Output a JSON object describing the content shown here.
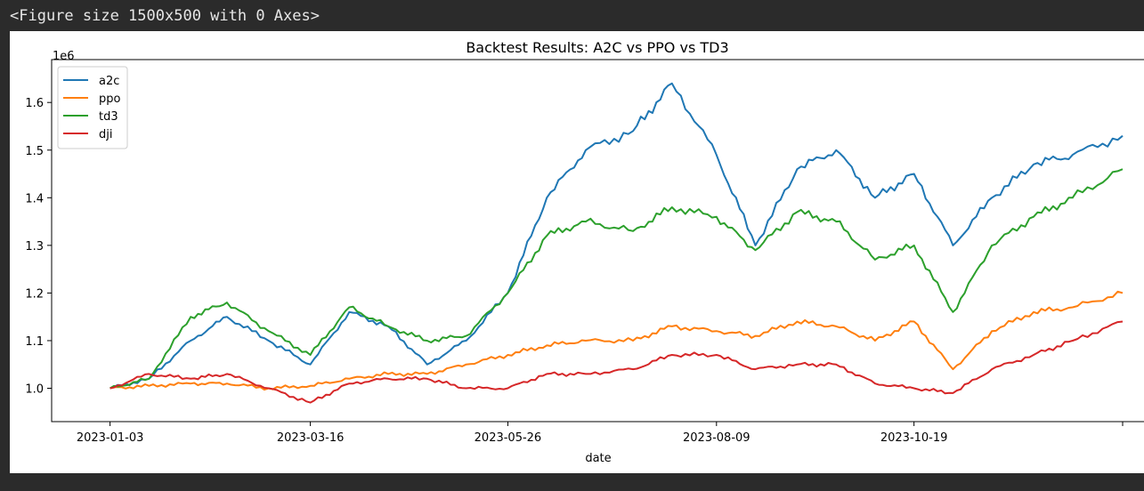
{
  "output_header": "<Figure size 1500x500 with 0 Axes>",
  "chart_data": {
    "type": "line",
    "title": "Backtest Results: A2C vs PPO vs TD3",
    "xlabel": "date",
    "ylabel": "",
    "y_offset_label": "1e6",
    "x_tick_labels": [
      "2023-01-03",
      "2023-03-16",
      "2023-05-26",
      "2023-08-09",
      "2023-10-19"
    ],
    "x_tick_dates": [
      "2023-01-03",
      "2023-03-16",
      "2023-05-26",
      "2023-08-09",
      "2023-10-19",
      "2024-01-02"
    ],
    "y_tick_values": [
      1.0,
      1.1,
      1.2,
      1.3,
      1.4,
      1.5,
      1.6
    ],
    "y_tick_labels": [
      "1.0",
      "1.1",
      "1.2",
      "1.3",
      "1.4",
      "1.5",
      "1.6"
    ],
    "ylim": [
      0.93,
      1.69
    ],
    "xlim": [
      "2022-12-13",
      "2024-01-10"
    ],
    "grid": false,
    "legend_position": "top-left",
    "dates": [
      "2023-01-03",
      "2023-01-17",
      "2023-02-01",
      "2023-02-14",
      "2023-03-01",
      "2023-03-16",
      "2023-03-30",
      "2023-04-13",
      "2023-04-27",
      "2023-05-11",
      "2023-05-26",
      "2023-06-09",
      "2023-06-23",
      "2023-07-10",
      "2023-07-24",
      "2023-08-09",
      "2023-08-23",
      "2023-09-07",
      "2023-09-21",
      "2023-10-05",
      "2023-10-19",
      "2023-11-02",
      "2023-11-16",
      "2023-12-01",
      "2023-12-15",
      "2024-01-02"
    ],
    "series": [
      {
        "name": "a2c",
        "color": "#1f77b4",
        "values": [
          1.0,
          1.02,
          1.1,
          1.15,
          1.1,
          1.05,
          1.16,
          1.13,
          1.05,
          1.1,
          1.2,
          1.4,
          1.5,
          1.54,
          1.64,
          1.49,
          1.3,
          1.46,
          1.5,
          1.4,
          1.45,
          1.3,
          1.4,
          1.47,
          1.49,
          1.53
        ]
      },
      {
        "name": "ppo",
        "color": "#ff7f0e",
        "values": [
          1.0,
          1.005,
          1.01,
          1.01,
          1.0,
          1.005,
          1.02,
          1.03,
          1.03,
          1.05,
          1.07,
          1.09,
          1.1,
          1.1,
          1.13,
          1.12,
          1.11,
          1.14,
          1.13,
          1.1,
          1.14,
          1.04,
          1.12,
          1.16,
          1.17,
          1.2
        ]
      },
      {
        "name": "td3",
        "color": "#2ca02c",
        "values": [
          1.0,
          1.02,
          1.15,
          1.18,
          1.12,
          1.07,
          1.17,
          1.13,
          1.1,
          1.11,
          1.2,
          1.32,
          1.35,
          1.33,
          1.38,
          1.36,
          1.29,
          1.37,
          1.35,
          1.27,
          1.3,
          1.16,
          1.3,
          1.36,
          1.4,
          1.46
        ]
      },
      {
        "name": "dji",
        "color": "#d62728",
        "values": [
          1.0,
          1.03,
          1.02,
          1.03,
          1.0,
          0.97,
          1.01,
          1.02,
          1.02,
          1.0,
          1.0,
          1.03,
          1.03,
          1.04,
          1.07,
          1.07,
          1.04,
          1.05,
          1.05,
          1.01,
          1.0,
          0.99,
          1.04,
          1.07,
          1.1,
          1.14
        ]
      }
    ]
  }
}
